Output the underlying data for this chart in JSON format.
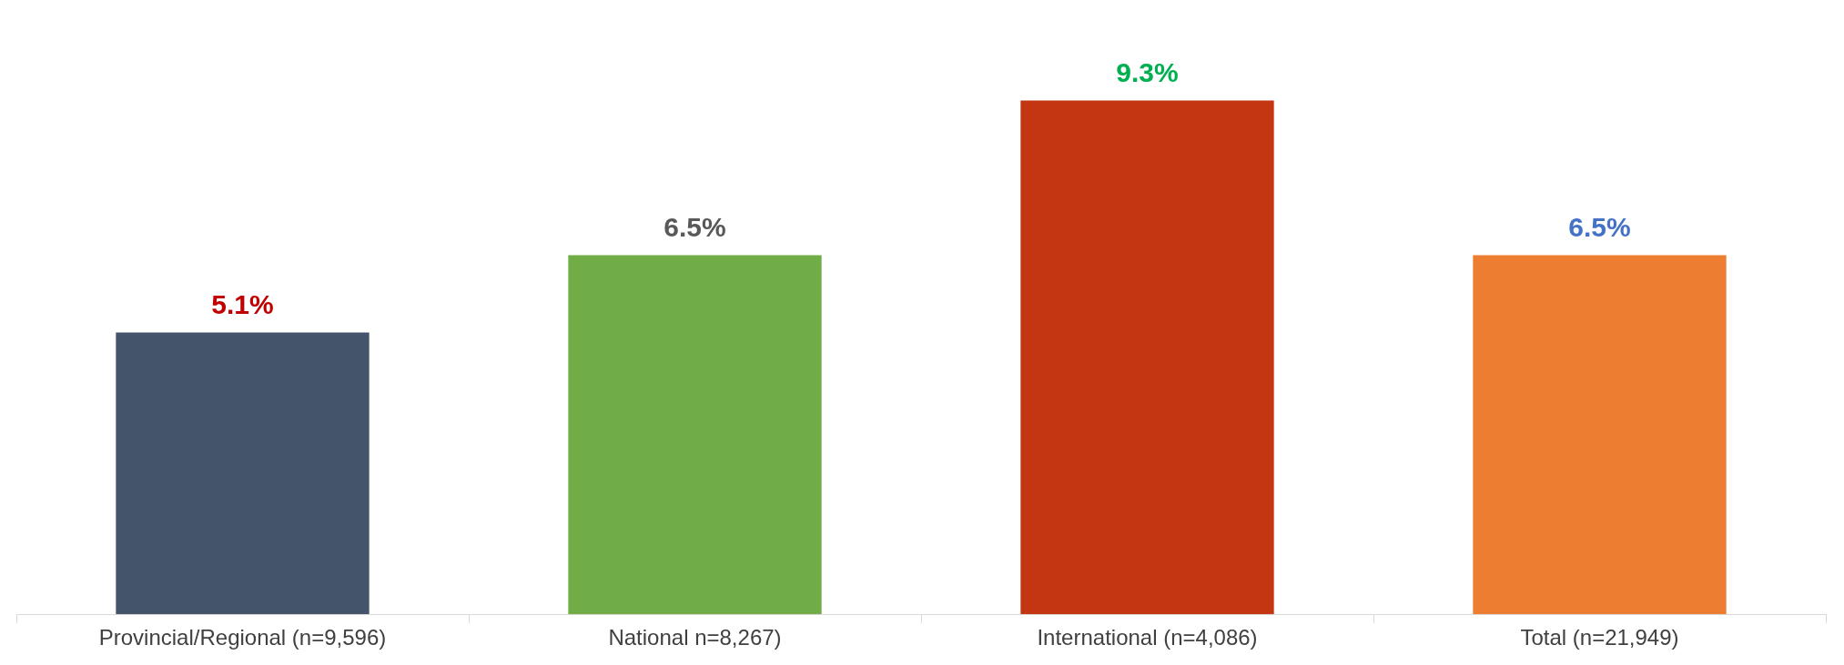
{
  "chart_data": {
    "type": "bar",
    "categories": [
      "Provincial/Regional (n=9,596)",
      "National n=8,267)",
      "International (n=4,086)",
      "Total (n=21,949)"
    ],
    "values": [
      5.1,
      6.5,
      9.3,
      6.5
    ],
    "value_labels": [
      "5.1%",
      "6.5%",
      "9.3%",
      "6.5%"
    ],
    "colors": [
      "#44546a",
      "#70ad47",
      "#c43511",
      "#ed7d31"
    ],
    "legend": false,
    "grid": false
  }
}
